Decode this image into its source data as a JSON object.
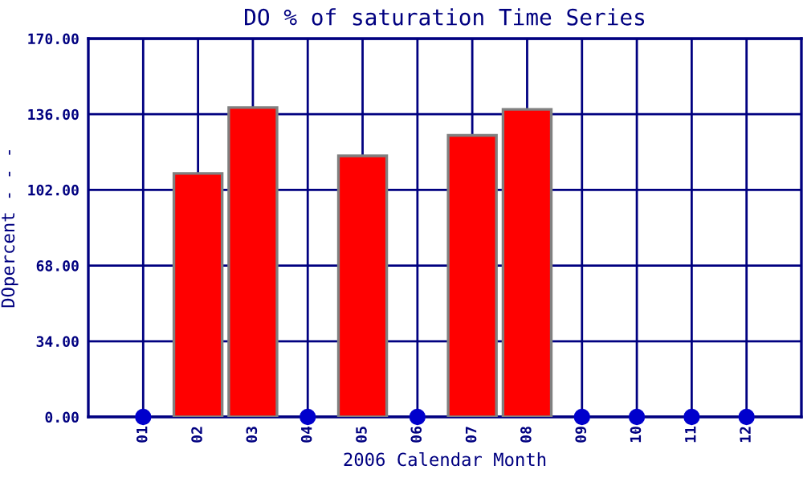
{
  "chart_data": {
    "type": "bar",
    "title": "DO % of saturation Time Series",
    "xlabel": "2006 Calendar Month",
    "ylabel": "DOpercent - - -",
    "categories": [
      "01",
      "02",
      "03",
      "04",
      "05",
      "06",
      "07",
      "08",
      "09",
      "10",
      "11",
      "12"
    ],
    "series": [
      {
        "color": "#ff0000",
        "values": [
          null,
          109.4,
          139,
          null,
          117.3,
          null,
          126.5,
          138.2,
          null,
          null,
          null,
          null
        ]
      },
      {
        "type": "scatter",
        "color": "#0000cc",
        "x": [
          "01",
          "04",
          "06",
          "09",
          "10",
          "11",
          "12"
        ],
        "values": [
          0,
          0,
          0,
          0,
          0,
          0,
          0
        ]
      }
    ],
    "ylim": [
      0,
      170
    ],
    "yticks": [
      {
        "value": 0,
        "label": "0.00"
      },
      {
        "value": 34,
        "label": "34.00"
      },
      {
        "value": 68,
        "label": "68.00"
      },
      {
        "value": 102,
        "label": "102.00"
      },
      {
        "value": 136,
        "label": "136.00"
      },
      {
        "value": 170,
        "label": "170.00"
      }
    ],
    "grid": true,
    "marker": "circle"
  }
}
